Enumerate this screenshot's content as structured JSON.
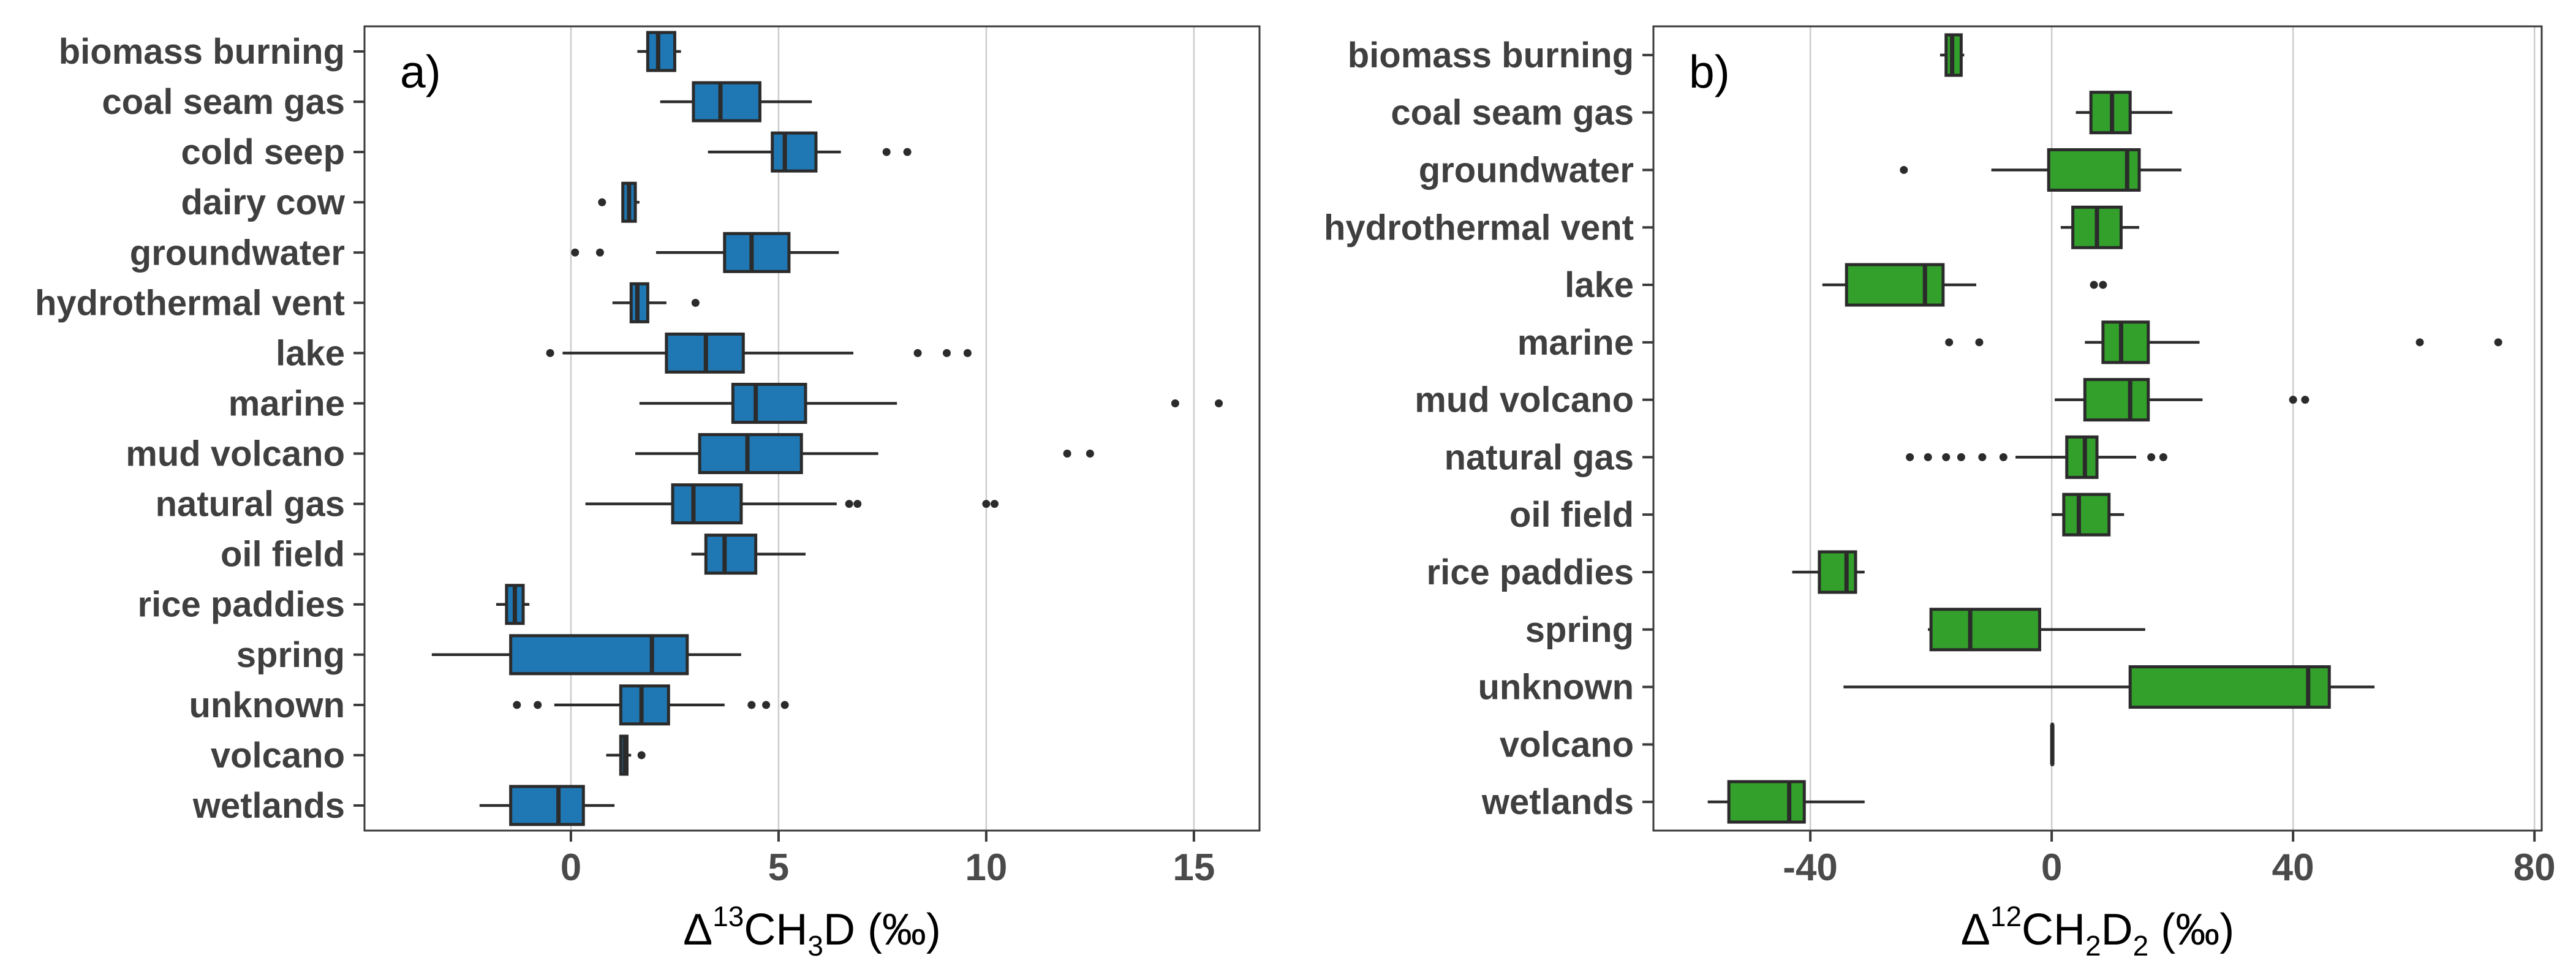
{
  "figure_title": "",
  "colors": {
    "background": "#ffffff",
    "panel_border": "#3a3a3a",
    "gridline": "#cccccc",
    "box_outline": "#2b2b2b",
    "median_line": "#2b2b2b",
    "whisker": "#2b2b2b",
    "outlier": "#2b2b2b",
    "category_label": "#3f3f3f",
    "tick_label": "#4a4a4a",
    "axis_title": "#000000",
    "panel_a_fill": "#1f78b4",
    "panel_b_fill": "#33a02c"
  },
  "chart_data": [
    {
      "type": "boxplot",
      "orientation": "horizontal",
      "panel_label": "a)",
      "fill_color": "#1f78b4",
      "xlabel_plain": "Δ13CH3D (‰)",
      "xlabel_segments": [
        {
          "t": "Δ",
          "pos": "n"
        },
        {
          "t": "13",
          "pos": "sup"
        },
        {
          "t": "CH",
          "pos": "n"
        },
        {
          "t": "3",
          "pos": "sub"
        },
        {
          "t": "D (‰)",
          "pos": "n"
        }
      ],
      "xlim": [
        -4.97,
        16.58
      ],
      "xticks": [
        0,
        5,
        10,
        15
      ],
      "grid": true,
      "categories": [
        "biomass burning",
        "coal seam gas",
        "cold seep",
        "dairy cow",
        "groundwater",
        "hydrothermal vent",
        "lake",
        "marine",
        "mud volcano",
        "natural gas",
        "oil field",
        "rice paddies",
        "spring",
        "unknown",
        "volcano",
        "wetlands"
      ],
      "boxes": [
        {
          "category": "biomass burning",
          "low": 1.6,
          "q1": 1.85,
          "median": 2.1,
          "q3": 2.5,
          "high": 2.65,
          "outliers": []
        },
        {
          "category": "coal seam gas",
          "low": 2.15,
          "q1": 2.95,
          "median": 3.6,
          "q3": 4.55,
          "high": 5.8,
          "outliers": []
        },
        {
          "category": "cold seep",
          "low": 3.3,
          "q1": 4.85,
          "median": 5.15,
          "q3": 5.9,
          "high": 6.5,
          "outliers": [
            7.6,
            8.1
          ]
        },
        {
          "category": "dairy cow",
          "low": 1.25,
          "q1": 1.25,
          "median": 1.4,
          "q3": 1.55,
          "high": 1.65,
          "outliers": [
            0.75
          ]
        },
        {
          "category": "groundwater",
          "low": 2.05,
          "q1": 3.7,
          "median": 4.35,
          "q3": 5.25,
          "high": 6.45,
          "outliers": [
            0.1,
            0.7
          ]
        },
        {
          "category": "hydrothermal vent",
          "low": 1.0,
          "q1": 1.45,
          "median": 1.6,
          "q3": 1.85,
          "high": 2.3,
          "outliers": [
            3.0
          ]
        },
        {
          "category": "lake",
          "low": -0.2,
          "q1": 2.3,
          "median": 3.25,
          "q3": 4.15,
          "high": 6.8,
          "outliers": [
            -0.5,
            8.35,
            9.05,
            9.55
          ]
        },
        {
          "category": "marine",
          "low": 1.65,
          "q1": 3.9,
          "median": 4.45,
          "q3": 5.65,
          "high": 7.85,
          "outliers": [
            14.55,
            15.6
          ]
        },
        {
          "category": "mud volcano",
          "low": 1.55,
          "q1": 3.1,
          "median": 4.25,
          "q3": 5.55,
          "high": 7.4,
          "outliers": [
            11.95,
            12.5
          ]
        },
        {
          "category": "natural gas",
          "low": 0.35,
          "q1": 2.45,
          "median": 2.95,
          "q3": 4.1,
          "high": 6.4,
          "outliers": [
            6.7,
            6.9,
            10.0,
            10.2
          ]
        },
        {
          "category": "oil field",
          "low": 2.9,
          "q1": 3.25,
          "median": 3.7,
          "q3": 4.45,
          "high": 5.65,
          "outliers": []
        },
        {
          "category": "rice paddies",
          "low": -1.8,
          "q1": -1.55,
          "median": -1.35,
          "q3": -1.15,
          "high": -1.0,
          "outliers": []
        },
        {
          "category": "spring",
          "low": -3.35,
          "q1": -1.45,
          "median": 1.95,
          "q3": 2.8,
          "high": 4.1,
          "outliers": []
        },
        {
          "category": "unknown",
          "low": -0.4,
          "q1": 1.2,
          "median": 1.7,
          "q3": 2.35,
          "high": 3.7,
          "outliers": [
            -1.3,
            -0.8,
            4.35,
            4.7,
            5.15
          ]
        },
        {
          "category": "volcano",
          "low": 0.85,
          "q1": 1.2,
          "median": 1.3,
          "q3": 1.35,
          "high": 1.45,
          "outliers": [
            1.7
          ]
        },
        {
          "category": "wetlands",
          "low": -2.2,
          "q1": -1.45,
          "median": -0.3,
          "q3": 0.3,
          "high": 1.05,
          "outliers": []
        }
      ]
    },
    {
      "type": "boxplot",
      "orientation": "horizontal",
      "panel_label": "b)",
      "fill_color": "#33a02c",
      "xlabel_plain": "Δ12CH2D2 (‰)",
      "xlabel_segments": [
        {
          "t": "Δ",
          "pos": "n"
        },
        {
          "t": "12",
          "pos": "sup"
        },
        {
          "t": "CH",
          "pos": "n"
        },
        {
          "t": "2",
          "pos": "sub"
        },
        {
          "t": "D",
          "pos": "n"
        },
        {
          "t": "2",
          "pos": "sub"
        },
        {
          "t": " (‰)",
          "pos": "n"
        }
      ],
      "xlim": [
        -66.0,
        81.2
      ],
      "xticks": [
        -40,
        0,
        40,
        80
      ],
      "grid": true,
      "categories": [
        "biomass burning",
        "coal seam gas",
        "groundwater",
        "hydrothermal vent",
        "lake",
        "marine",
        "mud volcano",
        "natural gas",
        "oil field",
        "rice paddies",
        "spring",
        "unknown",
        "volcano",
        "wetlands"
      ],
      "boxes": [
        {
          "category": "biomass burning",
          "low": -18.5,
          "q1": -17.5,
          "median": -16.5,
          "q3": -15.0,
          "high": -14.5,
          "outliers": []
        },
        {
          "category": "coal seam gas",
          "low": 4.0,
          "q1": 6.5,
          "median": 10.0,
          "q3": 13.0,
          "high": 20.0,
          "outliers": []
        },
        {
          "category": "groundwater",
          "low": -10.0,
          "q1": -0.5,
          "median": 12.5,
          "q3": 14.5,
          "high": 21.5,
          "outliers": [
            -24.5
          ]
        },
        {
          "category": "hydrothermal vent",
          "low": 1.5,
          "q1": 3.5,
          "median": 7.5,
          "q3": 11.5,
          "high": 14.5,
          "outliers": []
        },
        {
          "category": "lake",
          "low": -38.0,
          "q1": -34.0,
          "median": -21.0,
          "q3": -18.0,
          "high": -12.5,
          "outliers": [
            7.0,
            8.5
          ]
        },
        {
          "category": "marine",
          "low": 5.5,
          "q1": 8.5,
          "median": 11.5,
          "q3": 16.0,
          "high": 24.5,
          "outliers": [
            -17.0,
            -12.0,
            61.0,
            74.0
          ]
        },
        {
          "category": "mud volcano",
          "low": 0.5,
          "q1": 5.5,
          "median": 13.0,
          "q3": 16.0,
          "high": 25.0,
          "outliers": [
            40.0,
            42.0
          ]
        },
        {
          "category": "natural gas",
          "low": -6.0,
          "q1": 2.5,
          "median": 5.5,
          "q3": 7.5,
          "high": 14.0,
          "outliers": [
            -23.5,
            -20.5,
            -17.5,
            -15.0,
            -11.5,
            -8.0,
            16.5,
            18.5
          ]
        },
        {
          "category": "oil field",
          "low": 0.0,
          "q1": 2.0,
          "median": 4.5,
          "q3": 9.5,
          "high": 12.0,
          "outliers": []
        },
        {
          "category": "rice paddies",
          "low": -43.0,
          "q1": -38.5,
          "median": -34.0,
          "q3": -32.5,
          "high": -31.0,
          "outliers": []
        },
        {
          "category": "spring",
          "low": -20.5,
          "q1": -20.0,
          "median": -13.5,
          "q3": -2.0,
          "high": 15.5,
          "outliers": []
        },
        {
          "category": "unknown",
          "low": -34.5,
          "q1": 13.0,
          "median": 42.5,
          "q3": 46.0,
          "high": 53.5,
          "outliers": []
        },
        {
          "category": "volcano",
          "low": 0.1,
          "q1": 0.1,
          "median": 0.1,
          "q3": 0.1,
          "high": 0.1,
          "outliers": []
        },
        {
          "category": "wetlands",
          "low": -57.0,
          "q1": -53.5,
          "median": -43.5,
          "q3": -41.0,
          "high": -31.0,
          "outliers": []
        }
      ]
    }
  ]
}
